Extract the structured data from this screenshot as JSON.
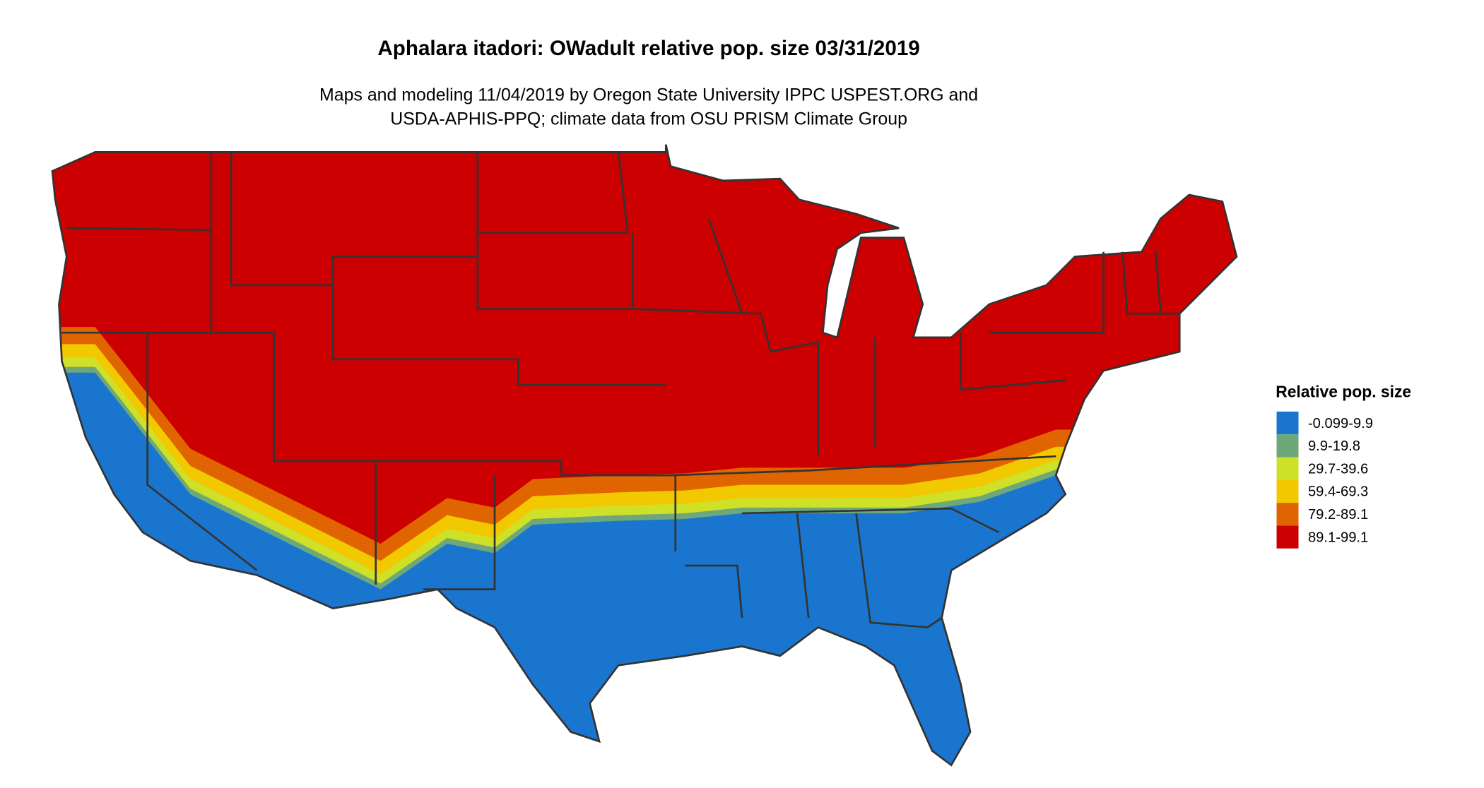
{
  "title": "Aphalara itadori: OWadult relative pop. size 03/31/2019",
  "subtitle": {
    "line1": "Maps and modeling 11/04/2019 by Oregon State University IPPC USPEST.ORG and",
    "line2": "USDA-APHIS-PPQ; climate data from OSU PRISM Climate Group"
  },
  "legend": {
    "title": "Relative pop. size",
    "items": [
      {
        "label": "-0.099-9.9",
        "color": "#1a75cf"
      },
      {
        "label": "9.9-19.8",
        "color": "#6fa878"
      },
      {
        "label": "29.7-39.6",
        "color": "#cfe029"
      },
      {
        "label": "59.4-69.3",
        "color": "#f2c800"
      },
      {
        "label": "79.2-89.1",
        "color": "#e06400"
      },
      {
        "label": "89.1-99.1",
        "color": "#cc0000"
      }
    ]
  },
  "map": {
    "region": "Conterminous United States",
    "border_color": "#333333"
  }
}
